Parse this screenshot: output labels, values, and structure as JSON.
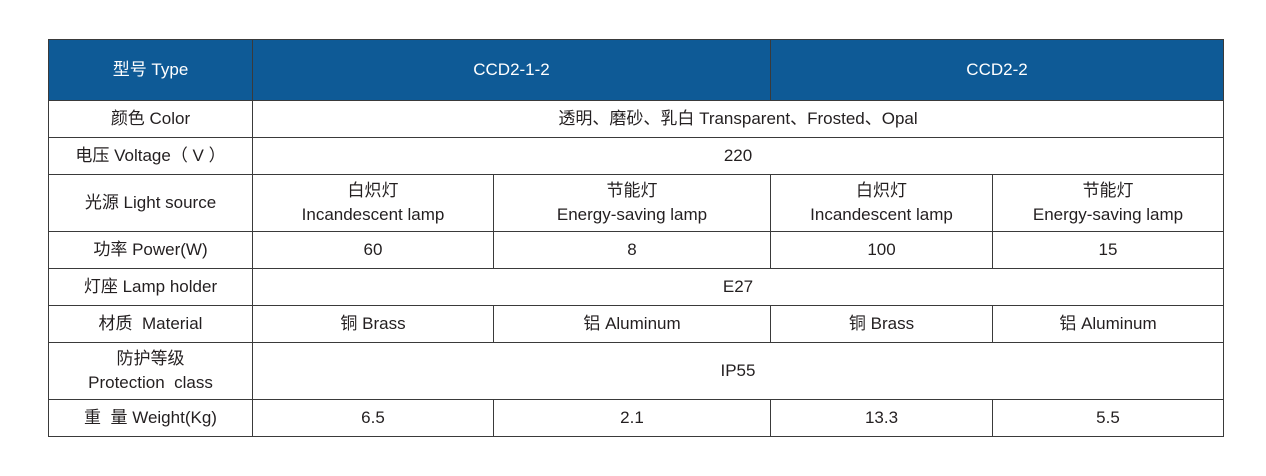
{
  "header": {
    "label": "型号 Type",
    "model_a": "CCD2-1-2",
    "model_b": "CCD2-2"
  },
  "rows": {
    "color": {
      "label": "颜色 Color",
      "value": "透明、磨砂、乳白 Transparent、Frosted、Opal"
    },
    "voltage": {
      "label": "电压 Voltage（ V ）",
      "value": "220"
    },
    "light_source": {
      "label": "光源 Light source",
      "cells": [
        {
          "cn": "白炽灯",
          "en": "Incandescent lamp"
        },
        {
          "cn": "节能灯",
          "en": "Energy-saving lamp"
        },
        {
          "cn": "白炽灯",
          "en": "Incandescent lamp"
        },
        {
          "cn": "节能灯",
          "en": "Energy-saving lamp"
        }
      ]
    },
    "power": {
      "label": "功率 Power(W)",
      "values": [
        "60",
        "8",
        "100",
        "15"
      ]
    },
    "lamp_holder": {
      "label": "灯座 Lamp holder",
      "value": "E27"
    },
    "material": {
      "label": "材质  Material",
      "values": [
        "铜 Brass",
        "铝 Aluminum",
        "铜 Brass",
        "铝 Aluminum"
      ]
    },
    "protection": {
      "label_cn": "防护等级",
      "label_en": "Protection  class",
      "value": "IP55"
    },
    "weight": {
      "label": "重  量 Weight(Kg)",
      "values": [
        "6.5",
        "2.1",
        "13.3",
        "5.5"
      ]
    }
  },
  "colors": {
    "header_bg": "#0e5a96",
    "header_text": "#ffffff",
    "border": "#3a3a3a"
  }
}
